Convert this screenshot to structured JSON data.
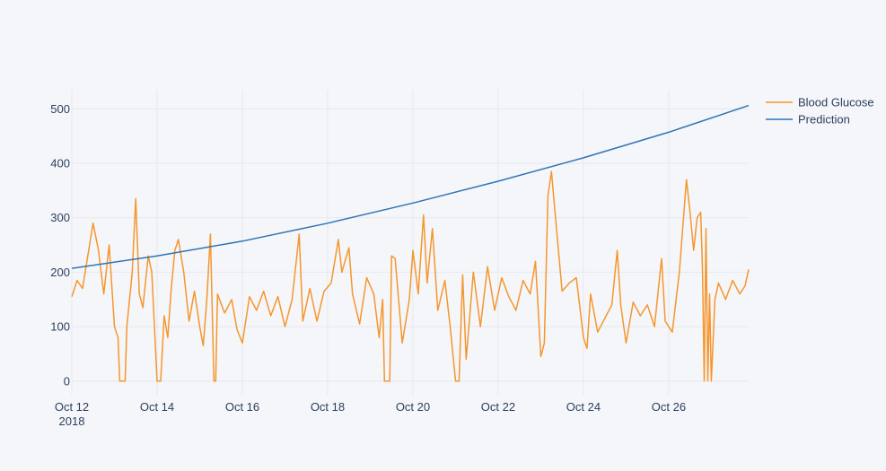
{
  "chart_data": {
    "type": "line",
    "title": "",
    "xlabel": "",
    "ylabel": "",
    "x_range": [
      "2018-10-12",
      "2018-10-27T21:00"
    ],
    "ylim": [
      -25,
      535
    ],
    "grid": true,
    "legend_position": "top-right",
    "x_ticks": [
      {
        "date": "2018-10-12",
        "label": "Oct 12",
        "sublabel": "2018"
      },
      {
        "date": "2018-10-14",
        "label": "Oct 14"
      },
      {
        "date": "2018-10-16",
        "label": "Oct 16"
      },
      {
        "date": "2018-10-18",
        "label": "Oct 18"
      },
      {
        "date": "2018-10-20",
        "label": "Oct 20"
      },
      {
        "date": "2018-10-22",
        "label": "Oct 22"
      },
      {
        "date": "2018-10-24",
        "label": "Oct 24"
      },
      {
        "date": "2018-10-26",
        "label": "Oct 26"
      }
    ],
    "y_ticks": [
      0,
      100,
      200,
      300,
      400,
      500
    ],
    "series": [
      {
        "name": "Blood Glucose",
        "color": "#f5962f",
        "points": [
          [
            "2018-10-12T00:00",
            155
          ],
          [
            "2018-10-12T03:00",
            185
          ],
          [
            "2018-10-12T06:00",
            170
          ],
          [
            "2018-10-12T09:00",
            230
          ],
          [
            "2018-10-12T12:00",
            290
          ],
          [
            "2018-10-12T15:00",
            240
          ],
          [
            "2018-10-12T18:00",
            160
          ],
          [
            "2018-10-12T21:00",
            250
          ],
          [
            "2018-10-13T00:00",
            100
          ],
          [
            "2018-10-13T02:00",
            80
          ],
          [
            "2018-10-13T03:00",
            0
          ],
          [
            "2018-10-13T06:00",
            0
          ],
          [
            "2018-10-13T07:00",
            100
          ],
          [
            "2018-10-13T10:00",
            200
          ],
          [
            "2018-10-13T12:00",
            335
          ],
          [
            "2018-10-13T14:00",
            160
          ],
          [
            "2018-10-13T16:00",
            135
          ],
          [
            "2018-10-13T19:00",
            230
          ],
          [
            "2018-10-13T21:00",
            200
          ],
          [
            "2018-10-14T00:00",
            0
          ],
          [
            "2018-10-14T02:00",
            0
          ],
          [
            "2018-10-14T04:00",
            120
          ],
          [
            "2018-10-14T06:00",
            80
          ],
          [
            "2018-10-14T08:00",
            170
          ],
          [
            "2018-10-14T10:00",
            240
          ],
          [
            "2018-10-14T12:00",
            260
          ],
          [
            "2018-10-14T15:00",
            200
          ],
          [
            "2018-10-14T18:00",
            110
          ],
          [
            "2018-10-14T21:00",
            165
          ],
          [
            "2018-10-15T00:00",
            100
          ],
          [
            "2018-10-15T02:00",
            65
          ],
          [
            "2018-10-15T04:00",
            150
          ],
          [
            "2018-10-15T06:00",
            270
          ],
          [
            "2018-10-15T08:00",
            0
          ],
          [
            "2018-10-15T09:00",
            0
          ],
          [
            "2018-10-15T10:00",
            160
          ],
          [
            "2018-10-15T14:00",
            125
          ],
          [
            "2018-10-15T18:00",
            150
          ],
          [
            "2018-10-15T21:00",
            95
          ],
          [
            "2018-10-16T00:00",
            70
          ],
          [
            "2018-10-16T04:00",
            155
          ],
          [
            "2018-10-16T08:00",
            130
          ],
          [
            "2018-10-16T12:00",
            165
          ],
          [
            "2018-10-16T16:00",
            120
          ],
          [
            "2018-10-16T20:00",
            155
          ],
          [
            "2018-10-17T00:00",
            100
          ],
          [
            "2018-10-17T04:00",
            150
          ],
          [
            "2018-10-17T08:00",
            270
          ],
          [
            "2018-10-17T10:00",
            110
          ],
          [
            "2018-10-17T14:00",
            170
          ],
          [
            "2018-10-17T18:00",
            110
          ],
          [
            "2018-10-17T22:00",
            165
          ],
          [
            "2018-10-18T02:00",
            180
          ],
          [
            "2018-10-18T06:00",
            260
          ],
          [
            "2018-10-18T08:00",
            200
          ],
          [
            "2018-10-18T12:00",
            245
          ],
          [
            "2018-10-18T14:00",
            160
          ],
          [
            "2018-10-18T18:00",
            105
          ],
          [
            "2018-10-18T22:00",
            190
          ],
          [
            "2018-10-19T02:00",
            160
          ],
          [
            "2018-10-19T05:00",
            80
          ],
          [
            "2018-10-19T07:00",
            150
          ],
          [
            "2018-10-19T08:00",
            0
          ],
          [
            "2018-10-19T11:00",
            0
          ],
          [
            "2018-10-19T12:00",
            230
          ],
          [
            "2018-10-19T14:00",
            225
          ],
          [
            "2018-10-19T18:00",
            70
          ],
          [
            "2018-10-19T22:00",
            150
          ],
          [
            "2018-10-20T00:00",
            240
          ],
          [
            "2018-10-20T03:00",
            160
          ],
          [
            "2018-10-20T06:00",
            305
          ],
          [
            "2018-10-20T08:00",
            180
          ],
          [
            "2018-10-20T11:00",
            280
          ],
          [
            "2018-10-20T14:00",
            130
          ],
          [
            "2018-10-20T18:00",
            185
          ],
          [
            "2018-10-20T21:00",
            100
          ],
          [
            "2018-10-21T00:00",
            0
          ],
          [
            "2018-10-21T02:00",
            0
          ],
          [
            "2018-10-21T04:00",
            195
          ],
          [
            "2018-10-21T06:00",
            40
          ],
          [
            "2018-10-21T10:00",
            200
          ],
          [
            "2018-10-21T14:00",
            100
          ],
          [
            "2018-10-21T18:00",
            210
          ],
          [
            "2018-10-21T22:00",
            130
          ],
          [
            "2018-10-22T02:00",
            190
          ],
          [
            "2018-10-22T06:00",
            155
          ],
          [
            "2018-10-22T10:00",
            130
          ],
          [
            "2018-10-22T14:00",
            185
          ],
          [
            "2018-10-22T18:00",
            160
          ],
          [
            "2018-10-22T21:00",
            220
          ],
          [
            "2018-10-23T00:00",
            45
          ],
          [
            "2018-10-23T02:00",
            70
          ],
          [
            "2018-10-23T04:00",
            340
          ],
          [
            "2018-10-23T06:00",
            385
          ],
          [
            "2018-10-23T08:00",
            310
          ],
          [
            "2018-10-23T12:00",
            165
          ],
          [
            "2018-10-23T16:00",
            180
          ],
          [
            "2018-10-23T20:00",
            190
          ],
          [
            "2018-10-24T00:00",
            80
          ],
          [
            "2018-10-24T02:00",
            60
          ],
          [
            "2018-10-24T04:00",
            160
          ],
          [
            "2018-10-24T08:00",
            90
          ],
          [
            "2018-10-24T12:00",
            115
          ],
          [
            "2018-10-24T16:00",
            140
          ],
          [
            "2018-10-24T19:00",
            240
          ],
          [
            "2018-10-24T21:00",
            140
          ],
          [
            "2018-10-25T00:00",
            70
          ],
          [
            "2018-10-25T04:00",
            145
          ],
          [
            "2018-10-25T08:00",
            120
          ],
          [
            "2018-10-25T12:00",
            140
          ],
          [
            "2018-10-25T16:00",
            100
          ],
          [
            "2018-10-25T20:00",
            225
          ],
          [
            "2018-10-25T22:00",
            110
          ],
          [
            "2018-10-26T02:00",
            90
          ],
          [
            "2018-10-26T06:00",
            200
          ],
          [
            "2018-10-26T10:00",
            370
          ],
          [
            "2018-10-26T12:00",
            310
          ],
          [
            "2018-10-26T14:00",
            240
          ],
          [
            "2018-10-26T16:00",
            300
          ],
          [
            "2018-10-26T18:00",
            310
          ],
          [
            "2018-10-26T19:00",
            210
          ],
          [
            "2018-10-26T20:00",
            0
          ],
          [
            "2018-10-26T21:00",
            280
          ],
          [
            "2018-10-26T22:00",
            0
          ],
          [
            "2018-10-26T23:00",
            160
          ],
          [
            "2018-10-27T00:00",
            0
          ],
          [
            "2018-10-27T02:00",
            150
          ],
          [
            "2018-10-27T04:00",
            180
          ],
          [
            "2018-10-27T08:00",
            150
          ],
          [
            "2018-10-27T12:00",
            185
          ],
          [
            "2018-10-27T16:00",
            160
          ],
          [
            "2018-10-27T19:00",
            175
          ],
          [
            "2018-10-27T21:00",
            205
          ]
        ]
      },
      {
        "name": "Prediction",
        "color": "#2f74b6",
        "points": [
          [
            "2018-10-12T00:00",
            207
          ],
          [
            "2018-10-14T00:00",
            230
          ],
          [
            "2018-10-16T00:00",
            257
          ],
          [
            "2018-10-18T00:00",
            290
          ],
          [
            "2018-10-20T00:00",
            327
          ],
          [
            "2018-10-22T00:00",
            367
          ],
          [
            "2018-10-24T00:00",
            410
          ],
          [
            "2018-10-26T00:00",
            457
          ],
          [
            "2018-10-27T21:00",
            506
          ]
        ]
      }
    ]
  }
}
